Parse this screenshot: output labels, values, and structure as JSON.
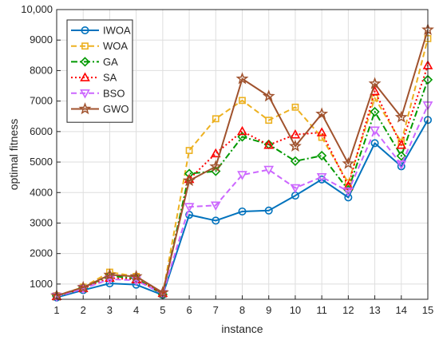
{
  "chart_data": {
    "type": "line",
    "xlabel": "instance",
    "ylabel": "optimal fitness",
    "x": [
      1,
      2,
      3,
      4,
      5,
      6,
      7,
      8,
      9,
      10,
      11,
      12,
      13,
      14,
      15
    ],
    "xlim": [
      1,
      15
    ],
    "ylim": [
      500,
      10000
    ],
    "yticks": [
      1000,
      2000,
      3000,
      4000,
      5000,
      6000,
      7000,
      8000,
      9000,
      10000
    ],
    "ytick_labels": [
      "1000",
      "2000",
      "3000",
      "4000",
      "5000",
      "6000",
      "7000",
      "8000",
      "9000",
      "10,000"
    ],
    "xtick_labels": [
      "1",
      "2",
      "3",
      "4",
      "5",
      "6",
      "7",
      "8",
      "9",
      "10",
      "11",
      "12",
      "13",
      "14",
      "15"
    ],
    "grid": true,
    "legend_position": "top-left",
    "series": [
      {
        "name": "IWOA",
        "color": "#0072BD",
        "dash": "solid",
        "marker": "circle",
        "values": [
          560,
          800,
          1020,
          980,
          640,
          3270,
          3080,
          3380,
          3410,
          3900,
          4430,
          3840,
          5620,
          4860,
          6380
        ]
      },
      {
        "name": "WOA",
        "color": "#EDB120",
        "dash": "dashed",
        "marker": "square",
        "values": [
          620,
          900,
          1390,
          1250,
          680,
          5380,
          6420,
          7020,
          6370,
          6800,
          5810,
          4320,
          7100,
          5650,
          9050
        ]
      },
      {
        "name": "GA",
        "color": "#009900",
        "dash": "dashdot",
        "marker": "diamond",
        "values": [
          610,
          880,
          1270,
          1180,
          660,
          4620,
          4700,
          5830,
          5580,
          5030,
          5210,
          4090,
          6650,
          5200,
          7700
        ]
      },
      {
        "name": "SA",
        "color": "#FF0000",
        "dash": "dotted",
        "marker": "triangle-up",
        "values": [
          600,
          860,
          1200,
          1150,
          700,
          4440,
          5280,
          6010,
          5560,
          5900,
          5970,
          4220,
          7320,
          5560,
          8170
        ]
      },
      {
        "name": "BSO",
        "color": "#CC66FF",
        "dash": "dashed",
        "marker": "triangle-down",
        "values": [
          590,
          850,
          1160,
          1120,
          680,
          3530,
          3580,
          4580,
          4750,
          4150,
          4510,
          4040,
          6040,
          4920,
          6860
        ]
      },
      {
        "name": "GWO",
        "color": "#A0522D",
        "dash": "solid",
        "marker": "star",
        "values": [
          620,
          890,
          1300,
          1250,
          720,
          4390,
          4850,
          7730,
          7160,
          5520,
          6580,
          4950,
          7570,
          6470,
          9340
        ]
      }
    ]
  }
}
